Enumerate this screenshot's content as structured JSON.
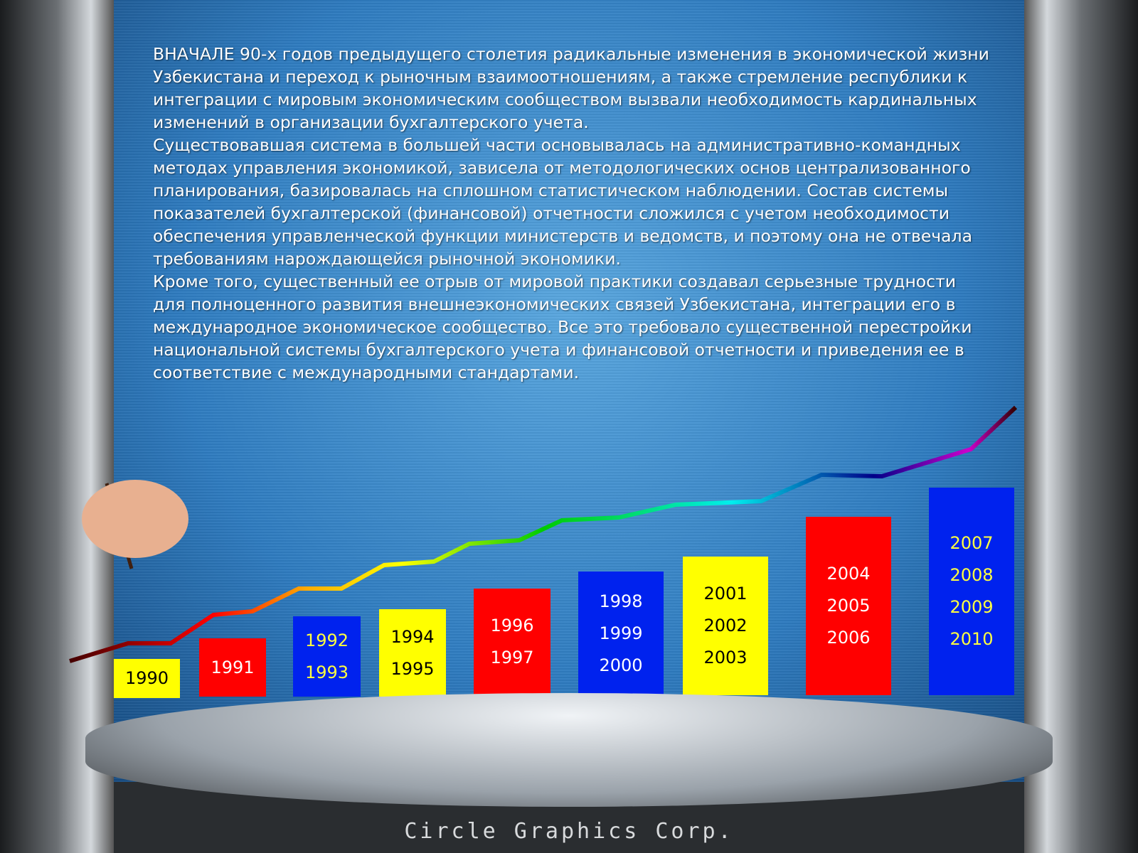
{
  "text": {
    "paragraphs": [
      "ВНАЧАЛЕ 90-х годов предыдущего столетия радикальные изменения в экономической жизни Узбекистана и переход к рыночным взаимоотношениям, а также стремление республики к интеграции с мировым экономическим сообществом вызвали необходимость кардинальных изменений в организации бухгалтерского учета.",
      "Существовавшая система в большей части основывалась на административно-командных методах управления экономикой, зависела от методологических основ централизованного планирования, базировалась на сплошном статистическом наблюдении. Состав системы показателей бухгалтерской (финансовой) отчетности сложился с учетом необходимости обеспечения управленческой функции министерств и ведомств, и поэтому она не отвечала требованиям нарождающейся рыночной экономики.",
      "Кроме того, существенный ее отрыв от мировой практики создавал серьезные трудности для полноценного развития внешнеэкономических связей Узбекистана, интеграции его в международное экономическое сообщество. Все это требовало существенной перестройки национальной системы бухгалтерского учета и финансовой отчетности и приведения ее в соответствие с международными стандартами."
    ]
  },
  "bars": [
    {
      "years": [
        "1990"
      ],
      "color": "#ffff00",
      "text_color": "#000000"
    },
    {
      "years": [
        "1991"
      ],
      "color": "#ff0000",
      "text_color": "#ffffff"
    },
    {
      "years": [
        "1992",
        "1993"
      ],
      "color": "#0022ee",
      "text_color": "#ffff40"
    },
    {
      "years": [
        "1994",
        "1995"
      ],
      "color": "#ffff00",
      "text_color": "#000000"
    },
    {
      "years": [
        "1996",
        "1997"
      ],
      "color": "#ff0000",
      "text_color": "#ffffff"
    },
    {
      "years": [
        "1998",
        "1999",
        "2000"
      ],
      "color": "#0022ee",
      "text_color": "#ffffff"
    },
    {
      "years": [
        "2001",
        "2002",
        "2003"
      ],
      "color": "#ffff00",
      "text_color": "#000000"
    },
    {
      "years": [
        "2004",
        "2005",
        "2006"
      ],
      "color": "#ff0000",
      "text_color": "#ffffff"
    },
    {
      "years": [
        "2007",
        "2008",
        "2009",
        "2010"
      ],
      "color": "#0022ee",
      "text_color": "#ffff40"
    }
  ],
  "footer": {
    "logo_text": "Circle Graphics Corp."
  }
}
